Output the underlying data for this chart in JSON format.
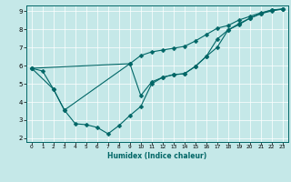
{
  "xlabel": "Humidex (Indice chaleur)",
  "xlim": [
    -0.5,
    23.5
  ],
  "ylim": [
    1.8,
    9.3
  ],
  "xticks": [
    0,
    1,
    2,
    3,
    4,
    5,
    6,
    7,
    8,
    9,
    10,
    11,
    12,
    13,
    14,
    15,
    16,
    17,
    18,
    19,
    20,
    21,
    22,
    23
  ],
  "yticks": [
    2,
    3,
    4,
    5,
    6,
    7,
    8,
    9
  ],
  "bg_color": "#c5e8e8",
  "line_color": "#006666",
  "line_width": 0.8,
  "marker": "D",
  "marker_size": 2.5,
  "series": [
    {
      "x": [
        0,
        1,
        2,
        3,
        4,
        5,
        6,
        7,
        8,
        9,
        10,
        11,
        12,
        13,
        14,
        15,
        16,
        17,
        18,
        19,
        20,
        21,
        22,
        23
      ],
      "y": [
        5.85,
        5.7,
        4.7,
        3.55,
        2.8,
        2.75,
        2.6,
        2.25,
        2.7,
        3.25,
        3.75,
        5.0,
        5.35,
        5.5,
        5.55,
        5.95,
        6.5,
        7.45,
        7.95,
        8.3,
        8.6,
        8.85,
        9.0,
        9.1
      ]
    },
    {
      "x": [
        0,
        2,
        3,
        9,
        10,
        11,
        12,
        13,
        14,
        15,
        16,
        17,
        18,
        19,
        20,
        21,
        22,
        23
      ],
      "y": [
        5.85,
        4.7,
        3.55,
        6.1,
        6.55,
        6.75,
        6.85,
        6.95,
        7.05,
        7.35,
        7.7,
        8.05,
        8.2,
        8.5,
        8.7,
        8.9,
        9.05,
        9.1
      ]
    },
    {
      "x": [
        0,
        9,
        10,
        11,
        12,
        13,
        14,
        15,
        16,
        17,
        18,
        19,
        20,
        21,
        22,
        23
      ],
      "y": [
        5.85,
        6.1,
        4.35,
        5.1,
        5.35,
        5.5,
        5.55,
        5.95,
        6.5,
        7.0,
        7.95,
        8.25,
        8.6,
        8.85,
        9.05,
        9.1
      ]
    }
  ]
}
